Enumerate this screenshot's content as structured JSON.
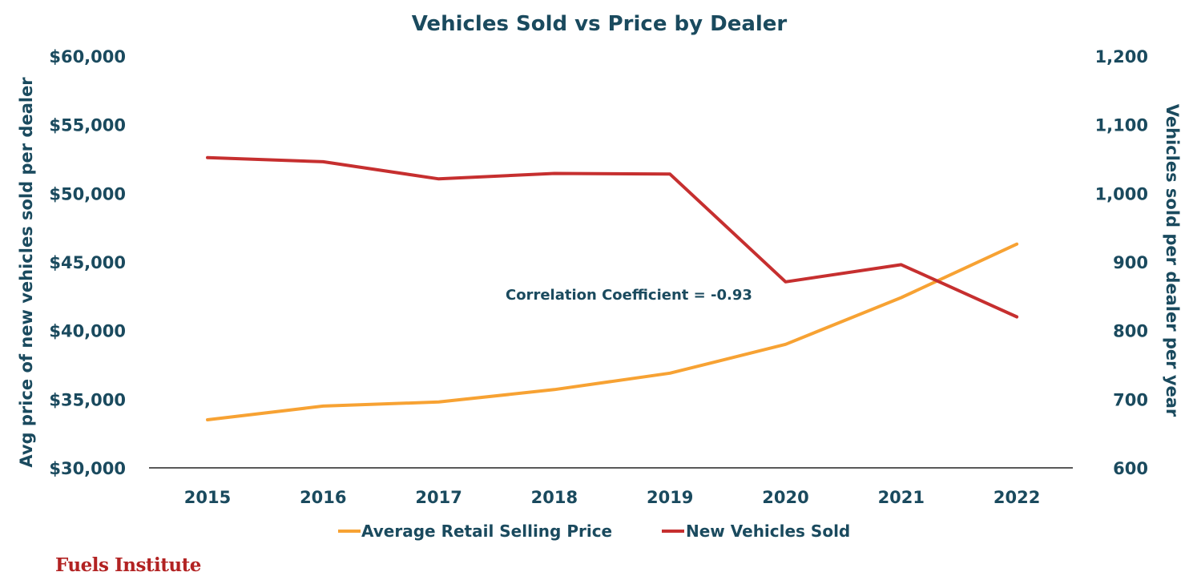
{
  "chart_data": {
    "type": "line",
    "title": "Vehicles Sold vs Price by Dealer",
    "categories": [
      "2015",
      "2016",
      "2017",
      "2018",
      "2019",
      "2020",
      "2021",
      "2022"
    ],
    "series": [
      {
        "name": "Average Retail Selling Price",
        "axis": "left",
        "color": "#f7a233",
        "values": [
          33500,
          34500,
          34800,
          35700,
          36900,
          39000,
          42400,
          46300
        ]
      },
      {
        "name": "New Vehicles Sold",
        "axis": "right",
        "color": "#c62f2f",
        "values": [
          1052,
          1046,
          1021,
          1029,
          1028,
          871,
          896,
          820
        ]
      }
    ],
    "ylabel_left": "Avg price of new vehicles sold per dealer",
    "ylabel_right": "Vehicles sold per dealer per year",
    "ylim_left": [
      30000,
      60000
    ],
    "ylim_right": [
      600,
      1200
    ],
    "yticks_left": [
      "$30,000",
      "$35,000",
      "$40,000",
      "$45,000",
      "$50,000",
      "$55,000",
      "$60,000"
    ],
    "yticks_right": [
      "600",
      "700",
      "800",
      "900",
      "1,000",
      "1,100",
      "1,200"
    ],
    "annotation": "Correlation Coefficient = -0.93",
    "legend_position": "bottom",
    "grid": false
  },
  "logo_text": "Fuels Institute",
  "colors": {
    "text": "#1a4a5e",
    "price": "#f7a233",
    "sold": "#c62f2f"
  }
}
